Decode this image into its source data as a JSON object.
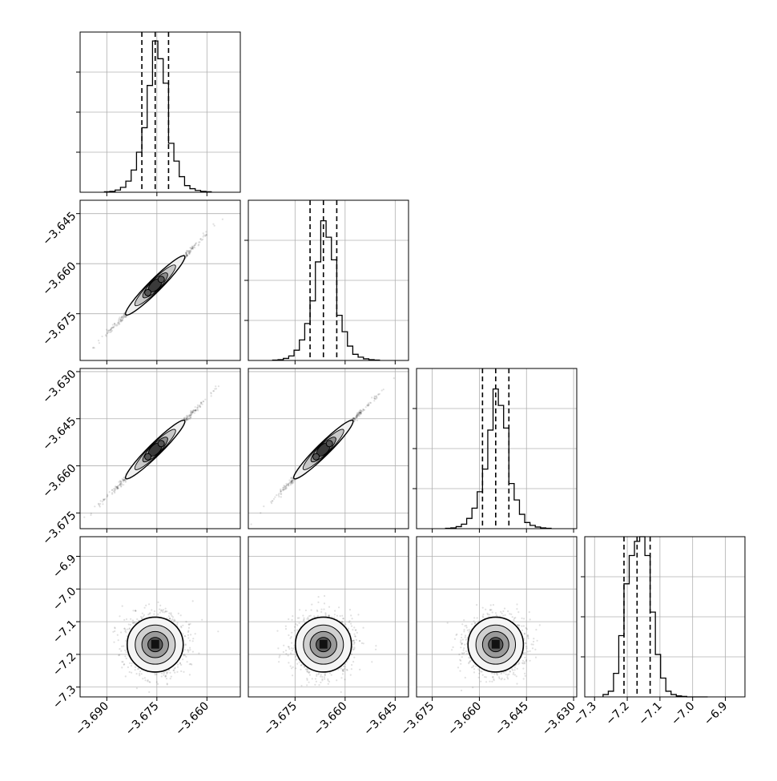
{
  "chart_data": {
    "type": "corner",
    "parameters": [
      {
        "range": [
          -3.698,
          -3.65
        ],
        "ticks": [
          "−3.690",
          "−3.675",
          "−3.660"
        ],
        "tick_values": [
          -3.69,
          -3.675,
          -3.66
        ],
        "quantiles": [
          -3.6795,
          -3.6755,
          -3.6715
        ],
        "hist_max": 0.36
      },
      {
        "range": [
          -3.689,
          -3.641
        ],
        "ticks": [
          "−3.675",
          "−3.660",
          "−3.645"
        ],
        "tick_values": [
          -3.675,
          -3.66,
          -3.645
        ],
        "quantiles": [
          -3.6705,
          -3.6665,
          -3.6625
        ],
        "hist_max": 0.39
      },
      {
        "range": [
          -3.68,
          -3.629
        ],
        "ticks": [
          "−3.675",
          "−3.660",
          "−3.645",
          "−3.630"
        ],
        "tick_values": [
          -3.675,
          -3.66,
          -3.645,
          -3.63
        ],
        "quantiles": [
          -3.659,
          -3.6548,
          -3.6506
        ],
        "hist_max": 0.39
      },
      {
        "range": [
          -7.33,
          -6.84
        ],
        "ticks": [
          "−7.3",
          "−7.2",
          "−7.1",
          "−7.0",
          "−6.9"
        ],
        "tick_values": [
          -7.3,
          -7.2,
          -7.1,
          -7.0,
          -6.9
        ],
        "quantiles": [
          -7.21,
          -7.17,
          -7.13
        ],
        "hist_max": 0.34
      }
    ],
    "y_ticks": [
      null,
      {
        "ticks": [
          "−3.645",
          "−3.660",
          "−3.675"
        ],
        "tick_values": [
          -3.645,
          -3.66,
          -3.675
        ]
      },
      {
        "ticks": [
          "−3.630",
          "−3.645",
          "−3.660",
          "−3.675"
        ],
        "tick_values": [
          -3.63,
          -3.645,
          -3.66,
          -3.675
        ]
      },
      {
        "ticks": [
          "−6.9",
          "−7.0",
          "−7.1",
          "−7.2",
          "−7.3"
        ],
        "tick_values": [
          -6.9,
          -7.0,
          -7.1,
          -7.2,
          -7.3
        ]
      }
    ],
    "hist_bins": [
      0.001,
      0.002,
      0.005,
      0.011,
      0.025,
      0.05,
      0.09,
      0.145,
      0.24,
      0.34,
      0.3,
      0.245,
      0.11,
      0.07,
      0.035,
      0.015,
      0.008,
      0.004,
      0.002,
      0.001
    ],
    "hist_bins_last": [
      0.005,
      0.012,
      0.05,
      0.13,
      0.24,
      0.3,
      0.33,
      0.34,
      0.3,
      0.18,
      0.09,
      0.04,
      0.012,
      0.005,
      0.002,
      0.001,
      0,
      0,
      0,
      0
    ],
    "grid": true,
    "quantile_lines": [
      0.16,
      0.5,
      0.84
    ]
  }
}
